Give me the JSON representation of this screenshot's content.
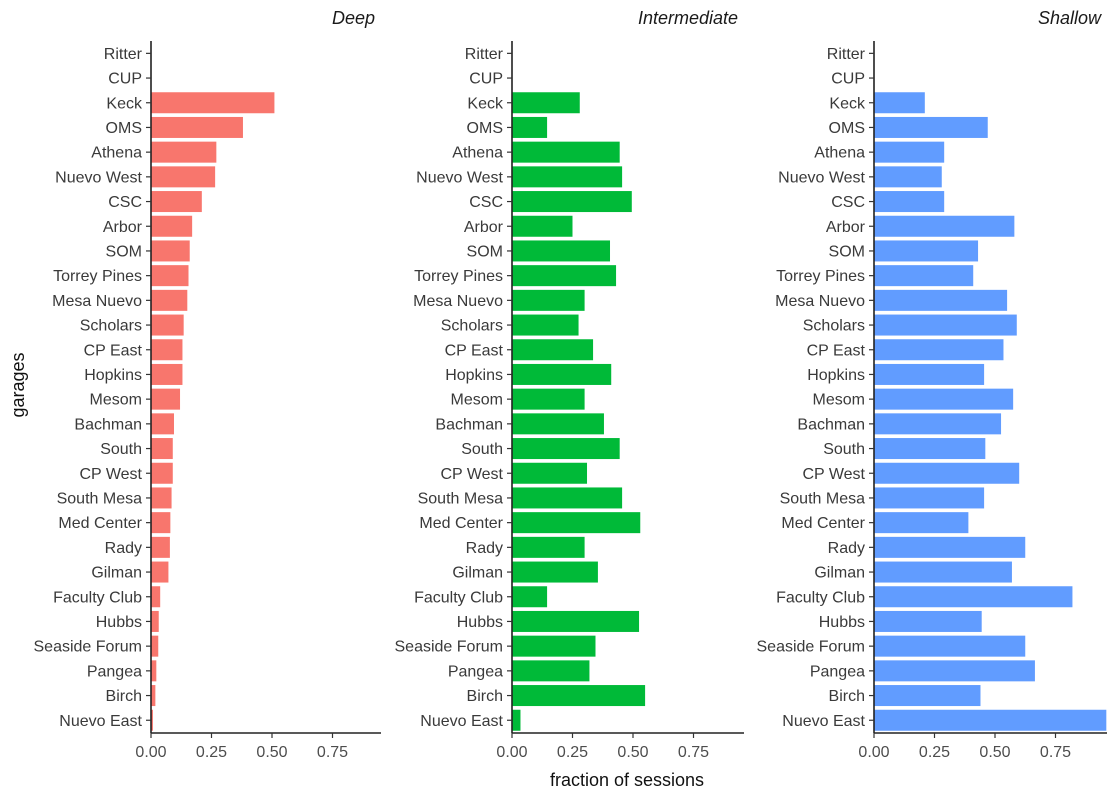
{
  "chart_data": {
    "type": "bar",
    "orientation": "horizontal",
    "xlabel": "fraction of sessions",
    "ylabel": "garages",
    "xlim": [
      0,
      0.95
    ],
    "xticks": [
      0,
      0.25,
      0.5,
      0.75
    ],
    "xtick_labels": [
      "0.00",
      "0.25",
      "0.50",
      "0.75"
    ],
    "grid": false,
    "legend": "none",
    "categories": [
      "Ritter",
      "CUP",
      "Keck",
      "OMS",
      "Athena",
      "Nuevo West",
      "CSC",
      "Arbor",
      "SOM",
      "Torrey Pines",
      "Mesa Nuevo",
      "Scholars",
      "CP East",
      "Hopkins",
      "Mesom",
      "Bachman",
      "South",
      "CP West",
      "South Mesa",
      "Med Center",
      "Rady",
      "Gilman",
      "Faculty Club",
      "Hubbs",
      "Seaside Forum",
      "Pangea",
      "Birch",
      "Nuevo East"
    ],
    "panels": [
      {
        "title": "Deep",
        "color": "#F8766D",
        "values": [
          0,
          0,
          0.51,
          0.38,
          0.27,
          0.265,
          0.21,
          0.17,
          0.16,
          0.155,
          0.15,
          0.135,
          0.13,
          0.13,
          0.12,
          0.095,
          0.09,
          0.09,
          0.085,
          0.08,
          0.078,
          0.072,
          0.038,
          0.032,
          0.03,
          0.022,
          0.018,
          0.008
        ]
      },
      {
        "title": "Intermediate",
        "color": "#00BA38",
        "values": [
          0,
          0,
          0.28,
          0.145,
          0.445,
          0.455,
          0.495,
          0.25,
          0.405,
          0.43,
          0.3,
          0.275,
          0.335,
          0.41,
          0.3,
          0.38,
          0.445,
          0.31,
          0.455,
          0.53,
          0.3,
          0.355,
          0.145,
          0.525,
          0.345,
          0.32,
          0.55,
          0.035
        ]
      },
      {
        "title": "Shallow",
        "color": "#619CFF",
        "values": [
          0,
          0,
          0.21,
          0.47,
          0.29,
          0.28,
          0.29,
          0.58,
          0.43,
          0.41,
          0.55,
          0.59,
          0.535,
          0.455,
          0.575,
          0.525,
          0.46,
          0.6,
          0.455,
          0.39,
          0.625,
          0.57,
          0.82,
          0.445,
          0.625,
          0.665,
          0.44,
          0.96
        ]
      }
    ]
  }
}
